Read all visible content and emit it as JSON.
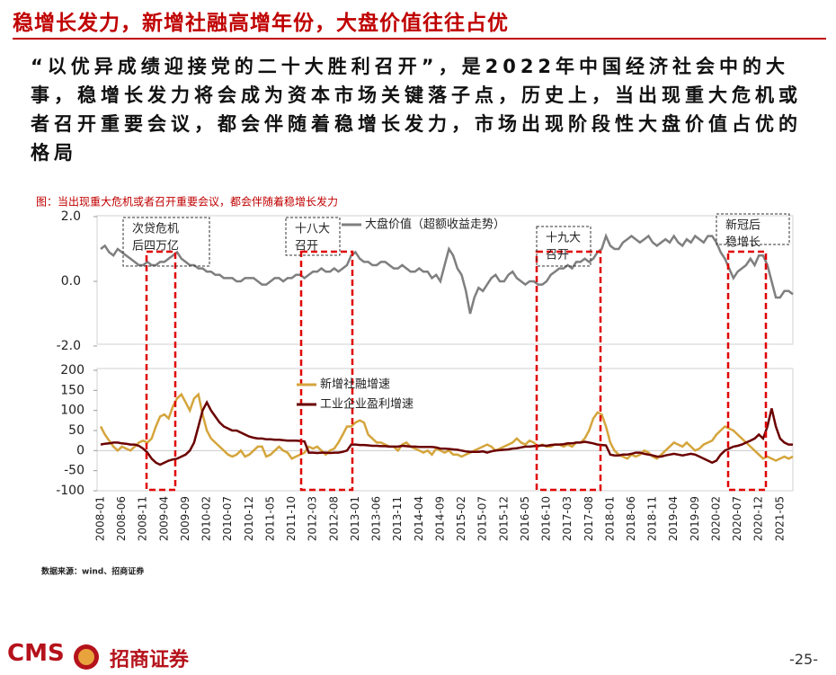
{
  "header": {
    "title": "稳增长发力，新增社融高增年份，大盘价值往往占优"
  },
  "body": {
    "text": "“以优异成绩迎接党的二十大胜利召开”，是2022年中国经济社会中的大事，稳增长发力将会成为资本市场关键落子点，历史上，当出现重大危机或者召开重要会议，都会伴随着稳增长发力，市场出现阶段性大盘价值占优的格局"
  },
  "chart_data": {
    "type": "line",
    "title": "图：当出现重大危机或者召开重要会议，都会伴随着稳增长发力",
    "categories": [
      "2008-01",
      null,
      null,
      null,
      null,
      "2008-06",
      null,
      null,
      null,
      null,
      "2008-11",
      null,
      null,
      null,
      null,
      "2009-04",
      null,
      null,
      null,
      null,
      "2009-09",
      null,
      null,
      null,
      null,
      "2010-02",
      null,
      null,
      null,
      null,
      "2010-07",
      null,
      null,
      null,
      null,
      "2010-12",
      null,
      null,
      null,
      null,
      "2011-05",
      null,
      null,
      null,
      null,
      "2011-10",
      null,
      null,
      null,
      null,
      "2012-03",
      null,
      null,
      null,
      null,
      "2012-08",
      null,
      null,
      null,
      null,
      "2013-01",
      null,
      null,
      null,
      null,
      "2013-06",
      null,
      null,
      null,
      null,
      "2013-11",
      null,
      null,
      null,
      null,
      "2014-04",
      null,
      null,
      null,
      null,
      "2014-09",
      null,
      null,
      null,
      null,
      "2015-02",
      null,
      null,
      null,
      null,
      "2015-07",
      null,
      null,
      null,
      null,
      "2015-12",
      null,
      null,
      null,
      null,
      "2016-05",
      null,
      null,
      null,
      null,
      "2016-10",
      null,
      null,
      null,
      null,
      "2017-03",
      null,
      null,
      null,
      null,
      "2017-08",
      null,
      null,
      null,
      null,
      "2018-01",
      null,
      null,
      null,
      null,
      "2018-06",
      null,
      null,
      null,
      null,
      "2018-11",
      null,
      null,
      null,
      null,
      "2019-04",
      null,
      null,
      null,
      null,
      "2019-09",
      null,
      null,
      null,
      null,
      "2020-02",
      null,
      null,
      null,
      null,
      "2020-07",
      null,
      null,
      null,
      null,
      "2020-12",
      null,
      null,
      null,
      null,
      "2021-05",
      null,
      null,
      null
    ],
    "series": [
      {
        "name": "大盘价值（超额收益走势）",
        "color": "#7f7f7f",
        "axis": "y2",
        "values": [
          1.0,
          1.1,
          0.9,
          0.8,
          1.0,
          0.9,
          0.8,
          0.7,
          0.6,
          0.5,
          0.5,
          0.6,
          0.5,
          0.5,
          0.6,
          0.6,
          0.7,
          0.8,
          0.9,
          0.7,
          0.6,
          0.5,
          0.5,
          0.4,
          0.4,
          0.3,
          0.3,
          0.2,
          0.2,
          0.1,
          0.1,
          0.1,
          0.0,
          0.0,
          0.1,
          0.1,
          0.1,
          0.0,
          -0.1,
          -0.1,
          0.0,
          0.1,
          0.1,
          0.0,
          0.1,
          0.1,
          0.2,
          0.2,
          0.1,
          0.2,
          0.3,
          0.3,
          0.4,
          0.3,
          0.3,
          0.4,
          0.3,
          0.4,
          0.5,
          0.8,
          0.9,
          0.7,
          0.6,
          0.6,
          0.5,
          0.5,
          0.6,
          0.6,
          0.5,
          0.4,
          0.4,
          0.5,
          0.4,
          0.3,
          0.3,
          0.4,
          0.3,
          0.3,
          0.1,
          0.2,
          0.0,
          0.5,
          1.0,
          0.8,
          0.4,
          0.2,
          -0.3,
          -1.0,
          -0.5,
          -0.2,
          -0.3,
          -0.1,
          0.1,
          0.2,
          0.0,
          0.0,
          0.2,
          0.3,
          0.1,
          0.0,
          -0.1,
          0.0,
          0.0,
          -0.1,
          -0.1,
          0.0,
          0.2,
          0.3,
          0.4,
          0.4,
          0.5,
          0.4,
          0.6,
          0.6,
          0.7,
          0.6,
          0.7,
          0.9,
          1.0,
          1.4,
          1.1,
          1.0,
          1.0,
          1.2,
          1.3,
          1.4,
          1.3,
          1.2,
          1.3,
          1.4,
          1.2,
          1.1,
          1.2,
          1.3,
          1.2,
          1.4,
          1.2,
          1.1,
          1.3,
          1.2,
          1.4,
          1.3,
          1.2,
          1.4,
          1.4,
          1.2,
          0.9,
          0.7,
          0.4,
          0.1,
          0.3,
          0.4,
          0.5,
          0.7,
          0.5,
          0.8,
          0.8,
          0.5,
          0.0,
          -0.5,
          -0.5,
          -0.3,
          -0.3,
          -0.4
        ]
      },
      {
        "name": "新增社融增速",
        "color": "#d4a53c",
        "values": [
          60,
          40,
          25,
          10,
          0,
          10,
          5,
          0,
          10,
          20,
          25,
          20,
          30,
          60,
          85,
          90,
          80,
          110,
          130,
          140,
          120,
          100,
          130,
          140,
          90,
          50,
          30,
          20,
          10,
          0,
          -10,
          -15,
          -10,
          0,
          -15,
          -10,
          0,
          10,
          10,
          -15,
          -10,
          0,
          10,
          0,
          -5,
          -20,
          -15,
          -10,
          -5,
          10,
          5,
          10,
          0,
          -10,
          0,
          5,
          20,
          40,
          60,
          60,
          70,
          75,
          70,
          40,
          30,
          20,
          20,
          15,
          10,
          10,
          0,
          15,
          20,
          10,
          5,
          0,
          -5,
          0,
          -10,
          5,
          0,
          -5,
          0,
          -10,
          -10,
          -15,
          -10,
          -5,
          0,
          5,
          10,
          15,
          10,
          0,
          5,
          10,
          15,
          20,
          30,
          20,
          15,
          25,
          20,
          10,
          15,
          10,
          10,
          15,
          15,
          10,
          15,
          10,
          20,
          20,
          30,
          50,
          80,
          95,
          90,
          60,
          20,
          0,
          -10,
          -15,
          -20,
          -10,
          -15,
          -10,
          0,
          -5,
          -15,
          -20,
          -10,
          0,
          10,
          20,
          15,
          10,
          20,
          10,
          0,
          5,
          15,
          20,
          25,
          40,
          50,
          60,
          55,
          50,
          40,
          30,
          20,
          10,
          0,
          -10,
          -20,
          -15,
          -20,
          -25,
          -20,
          -15,
          -20,
          -15
        ]
      },
      {
        "name": "工业企业盈利增速",
        "color": "#6b0000",
        "values": [
          15,
          17,
          18,
          20,
          20,
          18,
          17,
          15,
          15,
          12,
          5,
          -5,
          -20,
          -30,
          -35,
          -30,
          -25,
          -22,
          -20,
          -15,
          -10,
          0,
          20,
          60,
          100,
          120,
          100,
          85,
          70,
          60,
          55,
          50,
          50,
          45,
          40,
          35,
          32,
          30,
          30,
          28,
          28,
          27,
          27,
          26,
          25,
          25,
          25,
          24,
          23,
          -5,
          -5,
          -6,
          -5,
          -5,
          -6,
          -5,
          -5,
          -3,
          0,
          15,
          15,
          14,
          14,
          13,
          12,
          12,
          11,
          11,
          10,
          10,
          10,
          12,
          11,
          10,
          10,
          9,
          9,
          9,
          9,
          8,
          5,
          5,
          4,
          3,
          2,
          0,
          -2,
          -3,
          -3,
          -3,
          -2,
          -5,
          -2,
          0,
          1,
          2,
          3,
          5,
          6,
          8,
          10,
          10,
          11,
          12,
          13,
          12,
          14,
          15,
          15,
          16,
          18,
          18,
          20,
          20,
          22,
          20,
          18,
          15,
          14,
          13,
          -10,
          -12,
          -12,
          -10,
          -10,
          -8,
          -5,
          -5,
          -8,
          -10,
          -12,
          -15,
          -15,
          -12,
          -10,
          -8,
          -10,
          -12,
          -10,
          -8,
          -10,
          -15,
          -20,
          -25,
          -30,
          -25,
          -10,
          0,
          5,
          10,
          12,
          15,
          20,
          25,
          30,
          40,
          30,
          60,
          105,
          60,
          30,
          20,
          15,
          15
        ]
      }
    ],
    "ylim": [
      -100,
      200
    ],
    "yticks": [
      -100,
      -50,
      0,
      50,
      100,
      150,
      200
    ],
    "y2lim": [
      -2,
      2
    ],
    "y2ticks": [
      {
        "value": -2,
        "label": "-2.0"
      },
      {
        "value": 0,
        "label": "0.0"
      },
      {
        "value": 2,
        "label": "2.0"
      }
    ],
    "annotations": [
      [
        "次贷危机",
        "后四万亿"
      ],
      [
        "十八大",
        "召开"
      ],
      [
        "十九大",
        "召开"
      ],
      [
        "新冠后",
        "稳增长"
      ]
    ]
  },
  "source": "数据来源：wind、招商证券",
  "footer": {
    "logo": "CMS",
    "logo_cn": "招商证券",
    "page": "-25-"
  }
}
